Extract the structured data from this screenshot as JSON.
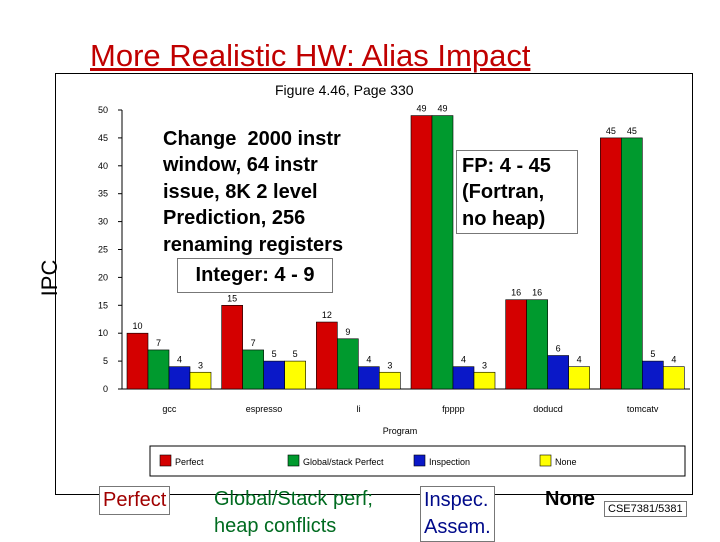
{
  "slide": {
    "title": "More Realistic HW: Alias Impact",
    "subtitle": "Figure 4.46, Page 330",
    "ylabel": "IPC",
    "note_main": "Change  2000 instr\nwindow, 64 instr\nissue, 8K 2 level\nPrediction, 256\nrenaming registers",
    "note_integer": "Integer: 4 - 9",
    "note_fp": "FP: 4 - 45\n(Fortran,\nno heap)",
    "bottom_perfect": "Perfect",
    "bottom_global": "Global/Stack perf;\nheap conflicts",
    "bottom_inspec": "Inspec.\nAssem.",
    "bottom_none": "None",
    "footer": "CSE7381/5381"
  },
  "colors": {
    "perfect": "#d40000",
    "global": "#009a2e",
    "inspection": "#0a18c8",
    "none": "#ffff00",
    "title": "#c00000"
  },
  "chart_data": {
    "type": "bar",
    "xlabel": "Program",
    "ylabel": "",
    "ylim": [
      0,
      50
    ],
    "yticks": [
      0,
      5,
      10,
      15,
      20,
      25,
      30,
      35,
      40,
      45,
      50
    ],
    "categories": [
      "gcc",
      "espresso",
      "li",
      "fpppp",
      "doducd",
      "tomcatv"
    ],
    "series": [
      {
        "name": "Perfect",
        "values": [
          10,
          15,
          12,
          49,
          16,
          45
        ]
      },
      {
        "name": "Global/stack Perfect",
        "values": [
          7,
          7,
          9,
          49,
          16,
          45
        ]
      },
      {
        "name": "Inspection",
        "values": [
          4,
          5,
          4,
          4,
          6,
          5
        ]
      },
      {
        "name": "None",
        "values": [
          3,
          5,
          3,
          3,
          4,
          4
        ]
      }
    ],
    "legend_position": "bottom"
  }
}
